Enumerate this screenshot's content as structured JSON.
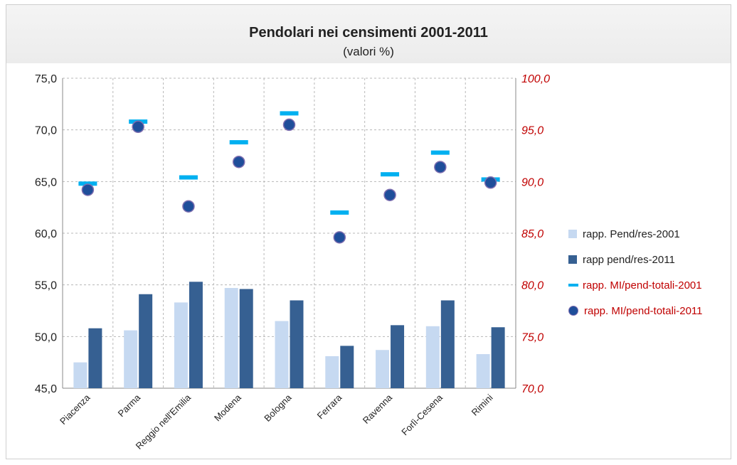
{
  "chart_data": {
    "type": "bar",
    "title": "Pendolari nei censimenti 2001-2011",
    "subtitle": "(valori %)",
    "categories": [
      "Piacenza",
      "Parma",
      "Reggio nell'Emilia",
      "Modena",
      "Bologna",
      "Ferrara",
      "Ravenna",
      "Forlì-Cesena",
      "Rimini"
    ],
    "y_left": {
      "min": 45,
      "max": 75,
      "step": 5,
      "tick_labels": [
        "45,0",
        "50,0",
        "55,0",
        "60,0",
        "65,0",
        "70,0",
        "75,0"
      ]
    },
    "y_right": {
      "min": 70,
      "max": 100,
      "step": 5,
      "tick_labels": [
        "70,0",
        "75,0",
        "80,0",
        "85,0",
        "90,0",
        "95,0",
        "100,0"
      ]
    },
    "grid": "vertical",
    "legend_position": "right",
    "series": [
      {
        "name": "rapp. Pend/res-2001",
        "kind": "bar",
        "axis": "left",
        "color": "#c6d9f1",
        "values": [
          47.5,
          50.6,
          53.3,
          54.7,
          51.5,
          48.1,
          48.7,
          51.0,
          48.3
        ]
      },
      {
        "name": "rapp pend/res-2011",
        "kind": "bar",
        "axis": "left",
        "color": "#366092",
        "values": [
          50.8,
          54.1,
          55.3,
          54.6,
          53.5,
          49.1,
          51.1,
          53.5,
          50.9
        ]
      },
      {
        "name": "rapp. MI/pend-totali-2001",
        "kind": "dash",
        "axis": "right",
        "color": "#00b0f0",
        "values": [
          89.8,
          95.8,
          90.4,
          93.8,
          96.6,
          87.0,
          90.7,
          92.8,
          90.2
        ]
      },
      {
        "name": "rapp. MI/pend-totali-2011",
        "kind": "dot",
        "axis": "right",
        "color": "#1f4e9a",
        "values": [
          89.2,
          95.3,
          87.6,
          91.9,
          95.5,
          84.6,
          88.7,
          91.4,
          89.9
        ]
      }
    ]
  },
  "colors": {
    "right_axis_text": "#c00000",
    "grid": "#b8b8b8",
    "dot_outline": "#7f6fb0"
  }
}
